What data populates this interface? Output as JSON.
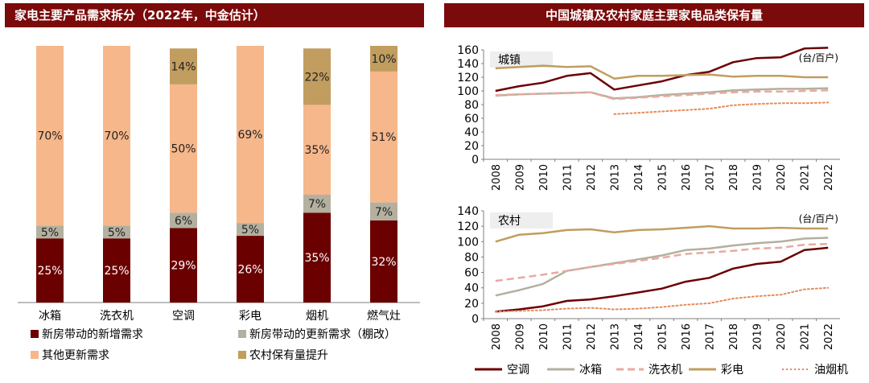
{
  "left_panel": {
    "title": "家电主要产品需求拆分（2022年，中金估计）"
  },
  "right_panel": {
    "title": "中国城镇及农村家庭主要家电品类保有量"
  },
  "chart_data": [
    {
      "type": "bar",
      "stacked": true,
      "percent": true,
      "categories": [
        "冰箱",
        "洗衣机",
        "空调",
        "彩电",
        "烟机",
        "燃气灶"
      ],
      "series": [
        {
          "name": "新房带动的新增需求",
          "color": "#6b0000",
          "values": [
            25,
            25,
            29,
            26,
            35,
            32
          ]
        },
        {
          "name": "新房带动的更新需求（棚改）",
          "color": "#b4b09f",
          "values": [
            5,
            5,
            6,
            5,
            7,
            7
          ]
        },
        {
          "name": "其他更新需求",
          "color": "#f6b78b",
          "values": [
            70,
            70,
            50,
            69,
            35,
            51
          ]
        },
        {
          "name": "农村保有量提升",
          "color": "#c19d5f",
          "values": [
            0,
            0,
            14,
            0,
            22,
            10
          ]
        }
      ],
      "labels": [
        [
          "25%",
          "25%",
          "29%",
          "26%",
          "35%",
          "32%"
        ],
        [
          "5%",
          "5%",
          "6%",
          "5%",
          "7%",
          "7%"
        ],
        [
          "70%",
          "70%",
          "50%",
          "69%",
          "35%",
          "51%"
        ],
        [
          "",
          "",
          "14%",
          "",
          "22%",
          "10%"
        ]
      ],
      "legend_position": "bottom"
    },
    {
      "type": "line",
      "panel_label": "城镇",
      "unit": "(台/百户)",
      "ylim": [
        0,
        160
      ],
      "yticks": [
        0,
        20,
        40,
        60,
        80,
        100,
        120,
        140,
        160
      ],
      "x": [
        "2008",
        "2009",
        "2010",
        "2011",
        "2012",
        "2013",
        "2014",
        "2015",
        "2016",
        "2017",
        "2018",
        "2019",
        "2020",
        "2021",
        "2022"
      ],
      "series": [
        {
          "name": "空调",
          "color": "#6b0000",
          "dash": "solid",
          "values": [
            100,
            107,
            112,
            122,
            126,
            102,
            108,
            114,
            123,
            128,
            142,
            148,
            149,
            162,
            163
          ]
        },
        {
          "name": "冰箱",
          "color": "#b4b09f",
          "dash": "solid",
          "values": [
            93,
            95,
            96,
            97,
            98,
            89,
            91,
            94,
            96,
            98,
            101,
            102,
            103,
            103,
            104
          ]
        },
        {
          "name": "洗衣机",
          "color": "#e8aaa0",
          "dash": "dashed",
          "values": [
            94,
            95,
            96,
            97,
            98,
            88,
            90,
            92,
            94,
            96,
            98,
            99,
            99,
            100,
            101
          ]
        },
        {
          "name": "彩电",
          "color": "#c19d5f",
          "dash": "solid",
          "values": [
            133,
            135,
            137,
            135,
            136,
            118,
            122,
            122,
            123,
            124,
            121,
            122,
            122,
            120,
            120
          ]
        },
        {
          "name": "油烟机",
          "color": "#e58a5a",
          "dash": "dotted",
          "values": [
            null,
            null,
            null,
            null,
            null,
            66,
            68,
            70,
            72,
            74,
            79,
            81,
            82,
            82,
            83
          ]
        }
      ]
    },
    {
      "type": "line",
      "panel_label": "农村",
      "unit": "(台/百户)",
      "ylim": [
        0,
        140
      ],
      "yticks": [
        0,
        20,
        40,
        60,
        80,
        100,
        120,
        140
      ],
      "x": [
        "2008",
        "2009",
        "2010",
        "2011",
        "2012",
        "2013",
        "2014",
        "2015",
        "2016",
        "2017",
        "2018",
        "2019",
        "2020",
        "2021",
        "2022"
      ],
      "series": [
        {
          "name": "空调",
          "color": "#6b0000",
          "dash": "solid",
          "values": [
            9,
            12,
            16,
            23,
            25,
            29,
            34,
            39,
            48,
            53,
            65,
            71,
            74,
            89,
            92
          ]
        },
        {
          "name": "冰箱",
          "color": "#b4b09f",
          "dash": "solid",
          "values": [
            30,
            37,
            45,
            62,
            67,
            72,
            77,
            82,
            89,
            91,
            95,
            98,
            100,
            104,
            105
          ]
        },
        {
          "name": "洗衣机",
          "color": "#e8aaa0",
          "dash": "dashed",
          "values": [
            49,
            53,
            57,
            62,
            67,
            71,
            75,
            79,
            84,
            86,
            88,
            91,
            92,
            96,
            97
          ]
        },
        {
          "name": "彩电",
          "color": "#c19d5f",
          "dash": "solid",
          "values": [
            100,
            109,
            111,
            115,
            116,
            112,
            115,
            116,
            118,
            120,
            117,
            117,
            118,
            117,
            117
          ]
        },
        {
          "name": "油烟机",
          "color": "#e58a5a",
          "dash": "dotted",
          "values": [
            9,
            10,
            11,
            13,
            14,
            12,
            13,
            15,
            18,
            20,
            26,
            29,
            31,
            38,
            40
          ]
        }
      ]
    }
  ],
  "line_legend": [
    "空调",
    "冰箱",
    "洗衣机",
    "彩电",
    "油烟机"
  ]
}
